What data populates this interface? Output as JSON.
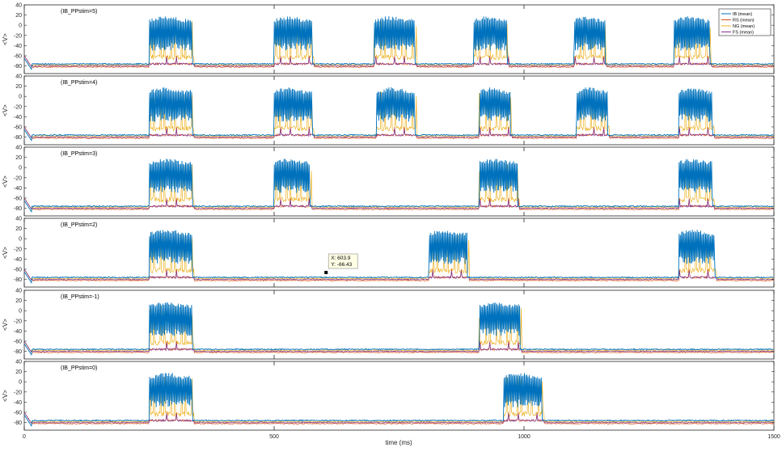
{
  "figure": {
    "xlabel": "time (ms)",
    "x_ticks": [
      "0",
      "500",
      "1000",
      "1500"
    ],
    "y_ticks": [
      "40",
      "20",
      "0",
      "-20",
      "-40",
      "-60",
      "-80"
    ],
    "ylabel": "<V>",
    "legend": [
      "IB (mean)",
      "RS (mean)",
      "NG (mean)",
      "FS (mean)"
    ],
    "datatip": {
      "x_line": "X: 603.9",
      "y_line": "Y: -66.43"
    },
    "panel_titles": [
      "(IB_PPstim=5)",
      "(IB_PPstim=4)",
      "(IB_PPstim=3)",
      "(IB_PPstim=2)",
      "(IB_PPstim=-1)",
      "(IB_PPstim=0)"
    ]
  },
  "chart_data": {
    "type": "line",
    "xlim": [
      0,
      1500
    ],
    "ylim": [
      -95,
      40
    ],
    "grid": false,
    "legend_placement": "top-right",
    "series": [
      {
        "name": "IB (mean)",
        "color": "#0072BD",
        "baseline": -76,
        "burst_peak": 18,
        "burst_low": -35
      },
      {
        "name": "RS (mean)",
        "color": "#D95319",
        "baseline": -82,
        "burst_peak": -60,
        "burst_low": -78
      },
      {
        "name": "NG (mean)",
        "color": "#EDB120",
        "baseline": -78,
        "burst_peak": 10,
        "burst_low": -68
      },
      {
        "name": "FS (mean)",
        "color": "#7E2F8E",
        "baseline": -80,
        "burst_peak": -63,
        "burst_low": -78
      }
    ],
    "panels": [
      {
        "label": "(IB_PPstim=5)",
        "bursts": [
          [
            250,
            340
          ],
          [
            500,
            580
          ],
          [
            700,
            785
          ],
          [
            900,
            970
          ],
          [
            1100,
            1165
          ],
          [
            1300,
            1375
          ]
        ]
      },
      {
        "label": "(IB_PPstim=4)",
        "bursts": [
          [
            250,
            340
          ],
          [
            500,
            580
          ],
          [
            705,
            785
          ],
          [
            910,
            975
          ],
          [
            1105,
            1170
          ],
          [
            1310,
            1380
          ]
        ]
      },
      {
        "label": "(IB_PPstim=3)",
        "bursts": [
          [
            250,
            340
          ],
          [
            500,
            575
          ],
          [
            910,
            990
          ],
          [
            1310,
            1380
          ]
        ]
      },
      {
        "label": "(IB_PPstim=2)",
        "bursts": [
          [
            250,
            340
          ],
          [
            810,
            890
          ],
          [
            1310,
            1385
          ]
        ]
      },
      {
        "label": "(IB_PPstim=-1)",
        "bursts": [
          [
            250,
            340
          ],
          [
            910,
            995
          ]
        ]
      },
      {
        "label": "(IB_PPstim=0)",
        "bursts": [
          [
            250,
            340
          ],
          [
            960,
            1040
          ]
        ]
      }
    ],
    "datatip": {
      "panel": 3,
      "x": 603.9,
      "y": -66.43
    }
  }
}
